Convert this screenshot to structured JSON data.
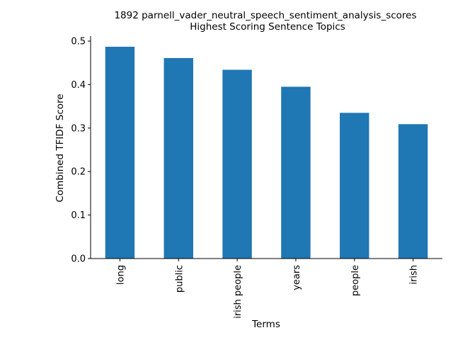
{
  "chart_data": {
    "type": "bar",
    "title": "1892 parnell_vader_neutral_speech_sentiment_analysis_scores",
    "subtitle": "Highest Scoring Sentence Topics",
    "xlabel": "Terms",
    "ylabel": "Combined TFIDF Score",
    "categories": [
      "long",
      "public",
      "irish people",
      "years",
      "people",
      "irish"
    ],
    "values": [
      0.487,
      0.461,
      0.434,
      0.395,
      0.335,
      0.309
    ],
    "ylim": [
      0,
      0.5
    ],
    "yticks": [
      "0.0",
      "0.1",
      "0.2",
      "0.3",
      "0.4",
      "0.5"
    ],
    "grid": false,
    "legend": "none",
    "bar_color": "#1f77b4"
  }
}
